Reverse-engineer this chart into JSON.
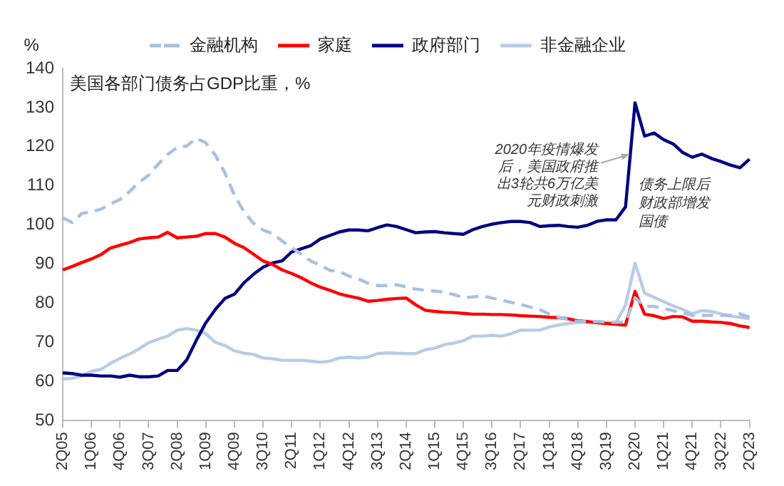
{
  "chart_data": {
    "type": "line",
    "title": "美国各部门债务占GDP比重，%",
    "ylabel": "%",
    "categories": [
      "2Q05",
      null,
      null,
      "1Q06",
      null,
      null,
      "4Q06",
      null,
      null,
      "3Q07",
      null,
      null,
      "2Q08",
      null,
      null,
      "1Q09",
      null,
      null,
      "4Q09",
      null,
      null,
      "3Q10",
      null,
      null,
      "2Q11",
      null,
      null,
      "1Q12",
      null,
      null,
      "4Q12",
      null,
      null,
      "3Q13",
      null,
      null,
      "2Q14",
      null,
      null,
      "1Q15",
      null,
      null,
      "4Q15",
      null,
      null,
      "3Q16",
      null,
      null,
      "2Q17",
      null,
      null,
      "1Q18",
      null,
      null,
      "4Q18",
      null,
      null,
      "3Q19",
      null,
      null,
      "2Q20",
      null,
      null,
      "1Q21",
      null,
      null,
      "4Q21",
      null,
      null,
      "3Q22",
      null,
      null,
      "2Q23"
    ],
    "series": [
      {
        "name": "金融机构",
        "color": "#a9c1e0",
        "line_style": "dashed",
        "values": [
          101.8,
          100.6,
          102.9,
          103.4,
          104,
          105.4,
          106.5,
          108.5,
          110.9,
          112.7,
          115.5,
          118,
          119.8,
          120.2,
          122.1,
          121,
          117.8,
          113.3,
          107.6,
          103.4,
          100.4,
          98.7,
          97.8,
          95.9,
          94.2,
          92.5,
          90.8,
          89.7,
          88.4,
          88.1,
          86.9,
          86.2,
          85.1,
          84.5,
          84.5,
          84.7,
          84.2,
          83.6,
          83.3,
          83.1,
          82.8,
          82.2,
          81.4,
          81.6,
          81.9,
          81.3,
          80.8,
          80.2,
          79.7,
          79.0,
          78.4,
          77.2,
          76.4,
          75.8,
          75.3,
          75.3,
          75.3,
          75.2,
          75.1,
          75.2,
          81.4,
          79.2,
          79.2,
          78.6,
          78.1,
          77.5,
          76.9,
          76.9,
          76.9,
          76.9,
          76.9,
          77.3,
          76.4
        ]
      },
      {
        "name": "家庭",
        "color": "#ff0000",
        "values": [
          88.5,
          89.4,
          90.4,
          91.3,
          92.4,
          94.1,
          94.8,
          95.5,
          96.4,
          96.7,
          96.9,
          98.1,
          96.7,
          96.9,
          97.1,
          97.8,
          97.8,
          96.9,
          95.3,
          94.2,
          92.5,
          90.8,
          89.9,
          88.5,
          87.6,
          86.5,
          85.2,
          84.1,
          83.3,
          82.4,
          81.8,
          81.3,
          80.5,
          80.7,
          81,
          81.2,
          81.3,
          79.6,
          78.2,
          77.9,
          77.7,
          77.6,
          77.4,
          77.2,
          77.2,
          77.1,
          77.1,
          77.0,
          76.8,
          76.7,
          76.6,
          76.4,
          76.3,
          76.0,
          75.5,
          75.3,
          75.0,
          74.8,
          74.6,
          74.4,
          83.0,
          77.2,
          76.8,
          76.1,
          76.6,
          76.5,
          75.4,
          75.4,
          75.2,
          75.1,
          74.8,
          74.2,
          73.8
        ]
      },
      {
        "name": "政府部门",
        "color": "#000080",
        "values": [
          62.2,
          62,
          61.6,
          61.6,
          61.4,
          61.4,
          61.1,
          61.6,
          61.2,
          61.2,
          61.4,
          62.8,
          62.8,
          65.5,
          70.5,
          75,
          78.4,
          81.2,
          82.3,
          85.2,
          87.4,
          89.2,
          90.3,
          90.8,
          93.1,
          93.9,
          94.7,
          96.4,
          97.3,
          98.2,
          98.7,
          98.7,
          98.5,
          99.3,
          100,
          99.6,
          98.8,
          98.0,
          98.2,
          98.3,
          98.0,
          97.8,
          97.6,
          98.8,
          99.6,
          100.2,
          100.6,
          100.9,
          100.9,
          100.6,
          99.6,
          99.8,
          99.9,
          99.6,
          99.4,
          99.9,
          100.9,
          101.3,
          101.3,
          104.6,
          131.2,
          122.7,
          123.5,
          121.8,
          120.7,
          118.5,
          117.3,
          118.1,
          117.0,
          116.2,
          115.3,
          114.6,
          116.8
        ]
      },
      {
        "name": "非金融企业",
        "color": "#b8cce4",
        "values": [
          60.6,
          60.8,
          61.4,
          62.6,
          63.1,
          64.6,
          65.9,
          67,
          68.3,
          69.9,
          70.8,
          71.6,
          73.1,
          73.5,
          73.1,
          72.2,
          70,
          69.2,
          67.8,
          67.2,
          66.9,
          66,
          65.8,
          65.4,
          65.4,
          65.4,
          65.2,
          64.9,
          65.2,
          66,
          66.2,
          66,
          66.2,
          67.1,
          67.3,
          67.2,
          67.1,
          67.1,
          68.1,
          68.5,
          69.4,
          69.8,
          70.4,
          71.6,
          71.6,
          71.8,
          71.6,
          72.2,
          73.1,
          73.1,
          73.1,
          73.9,
          74.4,
          74.8,
          75.1,
          75.1,
          75.1,
          75.1,
          75.1,
          79.5,
          90.2,
          82.6,
          81.5,
          80.4,
          79.3,
          78.4,
          77.3,
          78.1,
          77.9,
          77.3,
          76.7,
          76.4,
          76.0
        ]
      }
    ],
    "ylim": [
      50,
      140
    ],
    "yticks": [
      50,
      60,
      70,
      80,
      90,
      100,
      110,
      120,
      130,
      140
    ],
    "grid": false,
    "legend": "top",
    "marker": "none",
    "line_style": "solid",
    "annotations": [
      {
        "text": "2020年疫情爆发后，美国政府推出3轮共6万亿美元财政刺激",
        "x": "2Q20",
        "y": 118
      },
      "债务上限后财政部增发国债"
    ]
  }
}
